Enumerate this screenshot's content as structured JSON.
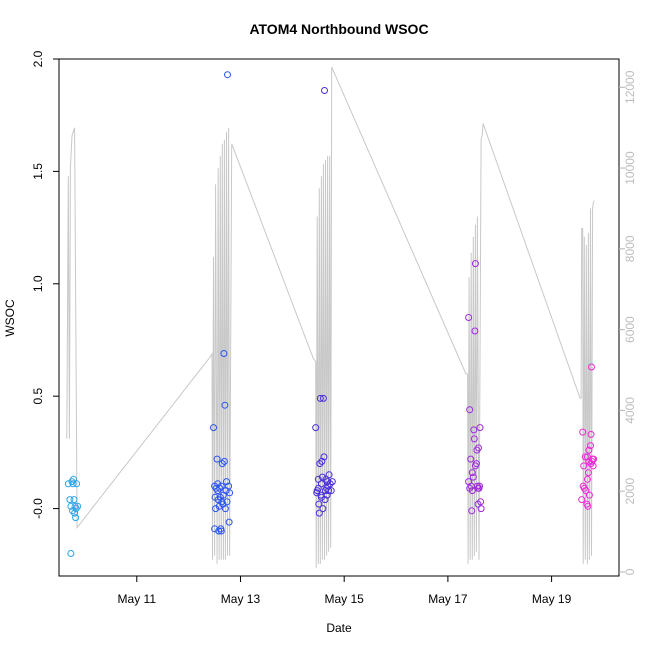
{
  "chart_data": {
    "type": "scatter",
    "title": "ATOM4 Northbound WSOC",
    "xlabel": "Date",
    "ylabel": "WSOC",
    "x_tick_labels": [
      "May 11",
      "May 13",
      "May 15",
      "May 17",
      "May 19"
    ],
    "x_tick_days": [
      11,
      13,
      15,
      17,
      19
    ],
    "xlim": [
      9.5,
      20.3
    ],
    "ylim": [
      -0.3,
      2.0
    ],
    "y_ticks": [
      "-0.0",
      "0.5",
      "1.0",
      "1.5",
      "2.0"
    ],
    "y_tick_values": [
      0,
      0.5,
      1.0,
      1.5,
      2.0
    ],
    "y2lim": [
      -100,
      12700
    ],
    "y2_ticks": [
      "0",
      "2000",
      "4000",
      "6000",
      "8000",
      "10000",
      "12000"
    ],
    "y2_tick_values": [
      0,
      2000,
      4000,
      6000,
      8000,
      10000,
      12000
    ],
    "grid": false,
    "colors": {
      "axis": "#000000",
      "secondary_axis": "#bdbdbd",
      "altitude_line": "#c8c8c8",
      "flight_1": "#2aa4e8",
      "flight_2": "#2a55f0",
      "flight_3": "#4b2fe0",
      "flight_4": "#a02ae0",
      "flight_5": "#ee2ad8"
    },
    "series": [
      {
        "color": "#2aa4e8",
        "points": [
          [
            9.68,
            0.11
          ],
          [
            9.71,
            0.04
          ],
          [
            9.73,
            0.01
          ],
          [
            9.75,
            0.12
          ],
          [
            9.76,
            -0.01
          ],
          [
            9.78,
            0.13
          ],
          [
            9.79,
            0.04
          ],
          [
            9.8,
            -0.02
          ],
          [
            9.81,
            0.01
          ],
          [
            9.82,
            -0.04
          ],
          [
            9.83,
            0.0
          ],
          [
            9.84,
            0.11
          ],
          [
            9.86,
            0.01
          ],
          [
            9.73,
            -0.2
          ],
          [
            9.77,
            0.11
          ]
        ]
      },
      {
        "color": "#2a55f0",
        "points": [
          [
            12.48,
            0.36
          ],
          [
            12.5,
            0.1
          ],
          [
            12.51,
            0.05
          ],
          [
            12.52,
            0.0
          ],
          [
            12.53,
            0.09
          ],
          [
            12.55,
            0.22
          ],
          [
            12.56,
            0.11
          ],
          [
            12.57,
            0.04
          ],
          [
            12.58,
            -0.1
          ],
          [
            12.59,
            0.01
          ],
          [
            12.6,
            0.09
          ],
          [
            12.61,
            0.05
          ],
          [
            12.62,
            -0.09
          ],
          [
            12.63,
            0.1
          ],
          [
            12.64,
            0.03
          ],
          [
            12.65,
            0.2
          ],
          [
            12.66,
            0.02
          ],
          [
            12.67,
            0.06
          ],
          [
            12.68,
            0.69
          ],
          [
            12.69,
            0.21
          ],
          [
            12.7,
            0.46
          ],
          [
            12.71,
            0.0
          ],
          [
            12.72,
            0.08
          ],
          [
            12.73,
            0.12
          ],
          [
            12.74,
            0.03
          ],
          [
            12.75,
            1.93
          ],
          [
            12.77,
            0.1
          ],
          [
            12.78,
            -0.06
          ],
          [
            12.79,
            0.07
          ],
          [
            12.5,
            -0.09
          ],
          [
            12.56,
            0.08
          ],
          [
            12.63,
            -0.1
          ]
        ]
      },
      {
        "color": "#4b2fe0",
        "points": [
          [
            14.45,
            0.36
          ],
          [
            14.47,
            0.07
          ],
          [
            14.48,
            0.08
          ],
          [
            14.5,
            0.13
          ],
          [
            14.51,
            0.02
          ],
          [
            14.52,
            -0.02
          ],
          [
            14.53,
            0.2
          ],
          [
            14.54,
            0.49
          ],
          [
            14.55,
            0.06
          ],
          [
            14.56,
            0.11
          ],
          [
            14.57,
            0.21
          ],
          [
            14.58,
            0.14
          ],
          [
            14.59,
            0.0
          ],
          [
            14.6,
            0.49
          ],
          [
            14.61,
            0.23
          ],
          [
            14.62,
            1.86
          ],
          [
            14.63,
            0.04
          ],
          [
            14.64,
            0.08
          ],
          [
            14.65,
            0.13
          ],
          [
            14.66,
            0.09
          ],
          [
            14.67,
            0.06
          ],
          [
            14.68,
            0.12
          ],
          [
            14.69,
            0.1
          ],
          [
            14.7,
            0.08
          ],
          [
            14.71,
            0.15
          ],
          [
            14.73,
            0.11
          ],
          [
            14.75,
            0.08
          ],
          [
            14.77,
            0.12
          ],
          [
            14.5,
            0.09
          ],
          [
            14.56,
            0.05
          ]
        ]
      },
      {
        "color": "#a02ae0",
        "points": [
          [
            17.4,
            0.85
          ],
          [
            17.42,
            0.44
          ],
          [
            17.44,
            0.22
          ],
          [
            17.45,
            0.1
          ],
          [
            17.46,
            -0.01
          ],
          [
            17.47,
            0.08
          ],
          [
            17.49,
            0.14
          ],
          [
            17.5,
            0.35
          ],
          [
            17.51,
            0.31
          ],
          [
            17.52,
            0.79
          ],
          [
            17.53,
            1.09
          ],
          [
            17.55,
            0.2
          ],
          [
            17.56,
            0.26
          ],
          [
            17.57,
            0.1
          ],
          [
            17.58,
            0.02
          ],
          [
            17.59,
            0.27
          ],
          [
            17.6,
            0.09
          ],
          [
            17.61,
            0.1
          ],
          [
            17.62,
            0.36
          ],
          [
            17.63,
            0.03
          ],
          [
            17.64,
            0.0
          ],
          [
            17.42,
            0.09
          ],
          [
            17.47,
            0.16
          ],
          [
            17.53,
            0.19
          ],
          [
            17.58,
            0.09
          ],
          [
            17.4,
            0.12
          ]
        ]
      },
      {
        "color": "#ee2ad8",
        "points": [
          [
            19.58,
            0.04
          ],
          [
            19.6,
            0.34
          ],
          [
            19.61,
            0.1
          ],
          [
            19.63,
            0.09
          ],
          [
            19.65,
            0.23
          ],
          [
            19.66,
            0.08
          ],
          [
            19.68,
            0.02
          ],
          [
            19.69,
            0.23
          ],
          [
            19.7,
            0.01
          ],
          [
            19.71,
            0.16
          ],
          [
            19.72,
            0.21
          ],
          [
            19.73,
            0.06
          ],
          [
            19.75,
            0.28
          ],
          [
            19.76,
            0.33
          ],
          [
            19.77,
            0.63
          ],
          [
            19.78,
            0.21
          ],
          [
            19.79,
            0.22
          ],
          [
            19.8,
            0.19
          ],
          [
            19.81,
            0.22
          ],
          [
            19.69,
            0.13
          ],
          [
            19.72,
            0.26
          ],
          [
            19.76,
            0.2
          ],
          [
            19.62,
            0.19
          ]
        ]
      }
    ],
    "secondary_series": {
      "color": "#c8c8c8",
      "points": [
        [
          9.65,
          3300
        ],
        [
          9.68,
          9800
        ],
        [
          9.7,
          3300
        ],
        [
          9.72,
          10000
        ],
        [
          9.75,
          10800
        ],
        [
          9.8,
          11000
        ],
        [
          9.85,
          1100
        ],
        [
          12.4,
          5300
        ],
        [
          12.45,
          5400
        ],
        [
          12.46,
          300
        ],
        [
          12.48,
          7800
        ],
        [
          12.5,
          400
        ],
        [
          12.52,
          9600
        ],
        [
          12.55,
          200
        ],
        [
          12.57,
          10000
        ],
        [
          12.59,
          300
        ],
        [
          12.61,
          10300
        ],
        [
          12.63,
          300
        ],
        [
          12.65,
          10600
        ],
        [
          12.67,
          300
        ],
        [
          12.69,
          10700
        ],
        [
          12.71,
          300
        ],
        [
          12.73,
          10900
        ],
        [
          12.75,
          400
        ],
        [
          12.77,
          11000
        ],
        [
          12.79,
          400
        ],
        [
          12.83,
          10600
        ],
        [
          14.4,
          5300
        ],
        [
          14.45,
          5200
        ],
        [
          14.46,
          100
        ],
        [
          14.48,
          8800
        ],
        [
          14.5,
          200
        ],
        [
          14.52,
          9500
        ],
        [
          14.54,
          200
        ],
        [
          14.56,
          9800
        ],
        [
          14.58,
          300
        ],
        [
          14.6,
          10100
        ],
        [
          14.62,
          300
        ],
        [
          14.64,
          10200
        ],
        [
          14.66,
          400
        ],
        [
          14.68,
          10300
        ],
        [
          14.7,
          500
        ],
        [
          14.72,
          10300
        ],
        [
          14.74,
          600
        ],
        [
          14.76,
          12500
        ],
        [
          17.35,
          4900
        ],
        [
          17.38,
          4900
        ],
        [
          17.39,
          200
        ],
        [
          17.41,
          7300
        ],
        [
          17.43,
          300
        ],
        [
          17.45,
          7900
        ],
        [
          17.47,
          300
        ],
        [
          17.49,
          8300
        ],
        [
          17.51,
          400
        ],
        [
          17.53,
          8600
        ],
        [
          17.55,
          500
        ],
        [
          17.57,
          8800
        ],
        [
          17.6,
          300
        ],
        [
          17.64,
          10700
        ],
        [
          17.66,
          10800
        ],
        [
          17.68,
          11100
        ],
        [
          19.55,
          4300
        ],
        [
          19.57,
          4300
        ],
        [
          19.58,
          8500
        ],
        [
          19.6,
          8500
        ],
        [
          19.61,
          200
        ],
        [
          19.63,
          8300
        ],
        [
          19.65,
          300
        ],
        [
          19.67,
          8100
        ],
        [
          19.69,
          200
        ],
        [
          19.71,
          8400
        ],
        [
          19.73,
          300
        ],
        [
          19.75,
          9000
        ],
        [
          19.77,
          400
        ],
        [
          19.79,
          9000
        ],
        [
          19.8,
          9100
        ],
        [
          19.82,
          9200
        ]
      ]
    }
  }
}
